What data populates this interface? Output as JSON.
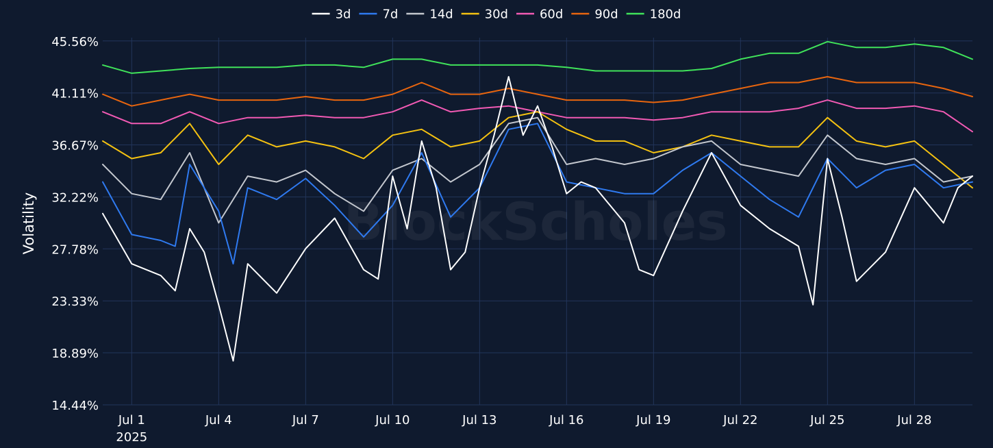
{
  "watermark": "BlockScholes",
  "chart_data": {
    "type": "line",
    "ylabel": "Volatility",
    "xlabel": "",
    "y_ticks": [
      "14.44%",
      "18.89%",
      "23.33%",
      "27.78%",
      "32.22%",
      "36.67%",
      "41.11%",
      "45.56%"
    ],
    "y_tick_values": [
      14.44,
      18.89,
      23.33,
      27.78,
      32.22,
      36.67,
      41.11,
      45.56
    ],
    "ylim": [
      14.44,
      46.6
    ],
    "x_domain": [
      "2025-06-30",
      "2025-07-30"
    ],
    "x_ticks": [
      {
        "date": "2025-07-01",
        "label": "Jul 1",
        "sub": "2025"
      },
      {
        "date": "2025-07-04",
        "label": "Jul 4"
      },
      {
        "date": "2025-07-07",
        "label": "Jul 7"
      },
      {
        "date": "2025-07-10",
        "label": "Jul 10"
      },
      {
        "date": "2025-07-13",
        "label": "Jul 13"
      },
      {
        "date": "2025-07-16",
        "label": "Jul 16"
      },
      {
        "date": "2025-07-19",
        "label": "Jul 19"
      },
      {
        "date": "2025-07-22",
        "label": "Jul 22"
      },
      {
        "date": "2025-07-25",
        "label": "Jul 25"
      },
      {
        "date": "2025-07-28",
        "label": "Jul 28"
      }
    ],
    "legend_position": "top-center",
    "grid": true,
    "series": [
      {
        "name": "3d",
        "color": "#ffffff",
        "x": [
          "2025-06-30",
          "2025-07-01",
          "2025-07-02",
          "2025-07-02T12:00",
          "2025-07-03",
          "2025-07-03T12:00",
          "2025-07-04",
          "2025-07-04T12:00",
          "2025-07-05",
          "2025-07-06",
          "2025-07-07",
          "2025-07-08",
          "2025-07-09",
          "2025-07-09T12:00",
          "2025-07-10",
          "2025-07-10T12:00",
          "2025-07-11",
          "2025-07-11T12:00",
          "2025-07-12",
          "2025-07-12T12:00",
          "2025-07-13",
          "2025-07-13T12:00",
          "2025-07-14",
          "2025-07-14T12:00",
          "2025-07-15",
          "2025-07-15T12:00",
          "2025-07-16",
          "2025-07-16T12:00",
          "2025-07-17",
          "2025-07-18",
          "2025-07-18T12:00",
          "2025-07-19",
          "2025-07-20",
          "2025-07-21",
          "2025-07-22",
          "2025-07-23",
          "2025-07-24",
          "2025-07-24T12:00",
          "2025-07-25",
          "2025-07-25T12:00",
          "2025-07-26",
          "2025-07-27",
          "2025-07-28",
          "2025-07-29",
          "2025-07-29T12:00",
          "2025-07-30"
        ],
        "values": [
          30.8,
          26.5,
          25.5,
          24.2,
          29.5,
          27.5,
          23.0,
          18.2,
          26.5,
          24.0,
          27.8,
          30.4,
          26.0,
          25.2,
          34.0,
          29.5,
          37.0,
          33.0,
          26.0,
          27.5,
          33.0,
          37.5,
          42.5,
          37.5,
          40.0,
          36.5,
          32.5,
          33.5,
          33.0,
          30.0,
          26.0,
          25.5,
          31.0,
          36.0,
          31.5,
          29.5,
          28.0,
          23.0,
          35.5,
          30.5,
          25.0,
          27.5,
          33.0,
          30.0,
          33.0,
          34.0
        ]
      },
      {
        "name": "7d",
        "color": "#2f7af0",
        "x": [
          "2025-06-30",
          "2025-07-01",
          "2025-07-02",
          "2025-07-02T12:00",
          "2025-07-03",
          "2025-07-04",
          "2025-07-04T12:00",
          "2025-07-05",
          "2025-07-06",
          "2025-07-07",
          "2025-07-08",
          "2025-07-09",
          "2025-07-10",
          "2025-07-11",
          "2025-07-12",
          "2025-07-13",
          "2025-07-14",
          "2025-07-15",
          "2025-07-16",
          "2025-07-17",
          "2025-07-18",
          "2025-07-19",
          "2025-07-20",
          "2025-07-21",
          "2025-07-22",
          "2025-07-23",
          "2025-07-24",
          "2025-07-25",
          "2025-07-26",
          "2025-07-27",
          "2025-07-28",
          "2025-07-29",
          "2025-07-30"
        ],
        "values": [
          33.5,
          29.0,
          28.5,
          28.0,
          35.0,
          31.0,
          26.5,
          33.0,
          32.0,
          33.8,
          31.5,
          28.8,
          31.5,
          36.0,
          30.5,
          33.0,
          38.0,
          38.5,
          33.5,
          33.0,
          32.5,
          32.5,
          34.5,
          36.0,
          34.0,
          32.0,
          30.5,
          35.5,
          33.0,
          34.5,
          35.0,
          33.0,
          33.5
        ]
      },
      {
        "name": "14d",
        "color": "#c4c8cf",
        "x": [
          "2025-06-30",
          "2025-07-01",
          "2025-07-02",
          "2025-07-03",
          "2025-07-04",
          "2025-07-05",
          "2025-07-06",
          "2025-07-07",
          "2025-07-08",
          "2025-07-09",
          "2025-07-10",
          "2025-07-11",
          "2025-07-12",
          "2025-07-13",
          "2025-07-14",
          "2025-07-15",
          "2025-07-16",
          "2025-07-17",
          "2025-07-18",
          "2025-07-19",
          "2025-07-20",
          "2025-07-21",
          "2025-07-22",
          "2025-07-23",
          "2025-07-24",
          "2025-07-25",
          "2025-07-26",
          "2025-07-27",
          "2025-07-28",
          "2025-07-29",
          "2025-07-30"
        ],
        "values": [
          35.0,
          32.5,
          32.0,
          36.0,
          30.0,
          34.0,
          33.5,
          34.5,
          32.5,
          31.0,
          34.5,
          35.5,
          33.5,
          35.0,
          38.5,
          39.0,
          35.0,
          35.5,
          35.0,
          35.5,
          36.5,
          37.0,
          35.0,
          34.5,
          34.0,
          37.5,
          35.5,
          35.0,
          35.5,
          33.5,
          34.0
        ]
      },
      {
        "name": "30d",
        "color": "#f5c211",
        "x": [
          "2025-06-30",
          "2025-07-01",
          "2025-07-02",
          "2025-07-03",
          "2025-07-04",
          "2025-07-05",
          "2025-07-06",
          "2025-07-07",
          "2025-07-08",
          "2025-07-09",
          "2025-07-10",
          "2025-07-11",
          "2025-07-12",
          "2025-07-13",
          "2025-07-14",
          "2025-07-15",
          "2025-07-16",
          "2025-07-17",
          "2025-07-18",
          "2025-07-19",
          "2025-07-20",
          "2025-07-21",
          "2025-07-22",
          "2025-07-23",
          "2025-07-24",
          "2025-07-25",
          "2025-07-26",
          "2025-07-27",
          "2025-07-28",
          "2025-07-29",
          "2025-07-30"
        ],
        "values": [
          37.0,
          35.5,
          36.0,
          38.5,
          35.0,
          37.5,
          36.5,
          37.0,
          36.5,
          35.5,
          37.5,
          38.0,
          36.5,
          37.0,
          39.0,
          39.5,
          38.0,
          37.0,
          37.0,
          36.0,
          36.5,
          37.5,
          37.0,
          36.5,
          36.5,
          39.0,
          37.0,
          36.5,
          37.0,
          35.0,
          33.0
        ]
      },
      {
        "name": "60d",
        "color": "#f25ab4",
        "x": [
          "2025-06-30",
          "2025-07-01",
          "2025-07-02",
          "2025-07-03",
          "2025-07-04",
          "2025-07-05",
          "2025-07-06",
          "2025-07-07",
          "2025-07-08",
          "2025-07-09",
          "2025-07-10",
          "2025-07-11",
          "2025-07-12",
          "2025-07-13",
          "2025-07-14",
          "2025-07-15",
          "2025-07-16",
          "2025-07-17",
          "2025-07-18",
          "2025-07-19",
          "2025-07-20",
          "2025-07-21",
          "2025-07-22",
          "2025-07-23",
          "2025-07-24",
          "2025-07-25",
          "2025-07-26",
          "2025-07-27",
          "2025-07-28",
          "2025-07-29",
          "2025-07-30"
        ],
        "values": [
          39.5,
          38.5,
          38.5,
          39.5,
          38.5,
          39.0,
          39.0,
          39.2,
          39.0,
          39.0,
          39.5,
          40.5,
          39.5,
          39.8,
          40.0,
          39.5,
          39.0,
          39.0,
          39.0,
          38.8,
          39.0,
          39.5,
          39.5,
          39.5,
          39.8,
          40.5,
          39.8,
          39.8,
          40.0,
          39.5,
          37.8
        ]
      },
      {
        "name": "90d",
        "color": "#e8650e",
        "x": [
          "2025-06-30",
          "2025-07-01",
          "2025-07-02",
          "2025-07-03",
          "2025-07-04",
          "2025-07-05",
          "2025-07-06",
          "2025-07-07",
          "2025-07-08",
          "2025-07-09",
          "2025-07-10",
          "2025-07-11",
          "2025-07-12",
          "2025-07-13",
          "2025-07-14",
          "2025-07-15",
          "2025-07-16",
          "2025-07-17",
          "2025-07-18",
          "2025-07-19",
          "2025-07-20",
          "2025-07-21",
          "2025-07-22",
          "2025-07-23",
          "2025-07-24",
          "2025-07-25",
          "2025-07-26",
          "2025-07-27",
          "2025-07-28",
          "2025-07-29",
          "2025-07-30"
        ],
        "values": [
          41.0,
          40.0,
          40.5,
          41.0,
          40.5,
          40.5,
          40.5,
          40.8,
          40.5,
          40.5,
          41.0,
          42.0,
          41.0,
          41.0,
          41.5,
          41.0,
          40.5,
          40.5,
          40.5,
          40.3,
          40.5,
          41.0,
          41.5,
          42.0,
          42.0,
          42.5,
          42.0,
          42.0,
          42.0,
          41.5,
          40.8
        ]
      },
      {
        "name": "180d",
        "color": "#40e35a",
        "x": [
          "2025-06-30",
          "2025-07-01",
          "2025-07-02",
          "2025-07-03",
          "2025-07-04",
          "2025-07-05",
          "2025-07-06",
          "2025-07-07",
          "2025-07-08",
          "2025-07-09",
          "2025-07-10",
          "2025-07-11",
          "2025-07-12",
          "2025-07-13",
          "2025-07-14",
          "2025-07-15",
          "2025-07-16",
          "2025-07-17",
          "2025-07-18",
          "2025-07-19",
          "2025-07-20",
          "2025-07-21",
          "2025-07-22",
          "2025-07-23",
          "2025-07-24",
          "2025-07-25",
          "2025-07-26",
          "2025-07-27",
          "2025-07-28",
          "2025-07-29",
          "2025-07-30"
        ],
        "values": [
          43.5,
          42.8,
          43.0,
          43.2,
          43.3,
          43.3,
          43.3,
          43.5,
          43.5,
          43.3,
          44.0,
          44.0,
          43.5,
          43.5,
          43.5,
          43.5,
          43.3,
          43.0,
          43.0,
          43.0,
          43.0,
          43.2,
          44.0,
          44.5,
          44.5,
          45.5,
          45.0,
          45.0,
          45.3,
          45.0,
          44.0
        ]
      }
    ]
  }
}
